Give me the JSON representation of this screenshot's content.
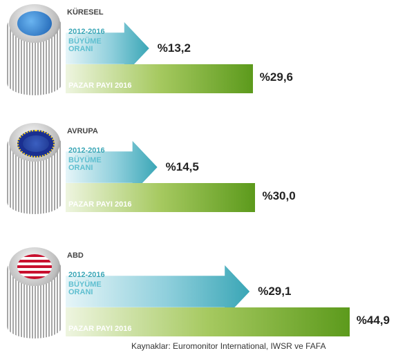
{
  "chart_data": {
    "type": "bar",
    "categories": [
      "KÜRESEL",
      "AVRUPA",
      "ABD"
    ],
    "xlim": [
      0,
      47
    ],
    "series": [
      {
        "name": "BÜYÜME ORANI",
        "period": "2012-2016",
        "color": "#3aa6b6",
        "values": [
          13.2,
          14.5,
          29.1
        ],
        "value_labels": [
          "%13,2",
          "%14,5",
          "%29,1"
        ]
      },
      {
        "name": "PAZAR PAYI 2016",
        "color": "#5c9a1c",
        "values": [
          29.6,
          30.0,
          44.9
        ],
        "value_labels": [
          "%29,6",
          "%30,0",
          "%44,9"
        ]
      }
    ],
    "source": "Kaynaklar: Euromonitor International, IWSR ve FAFA"
  }
}
